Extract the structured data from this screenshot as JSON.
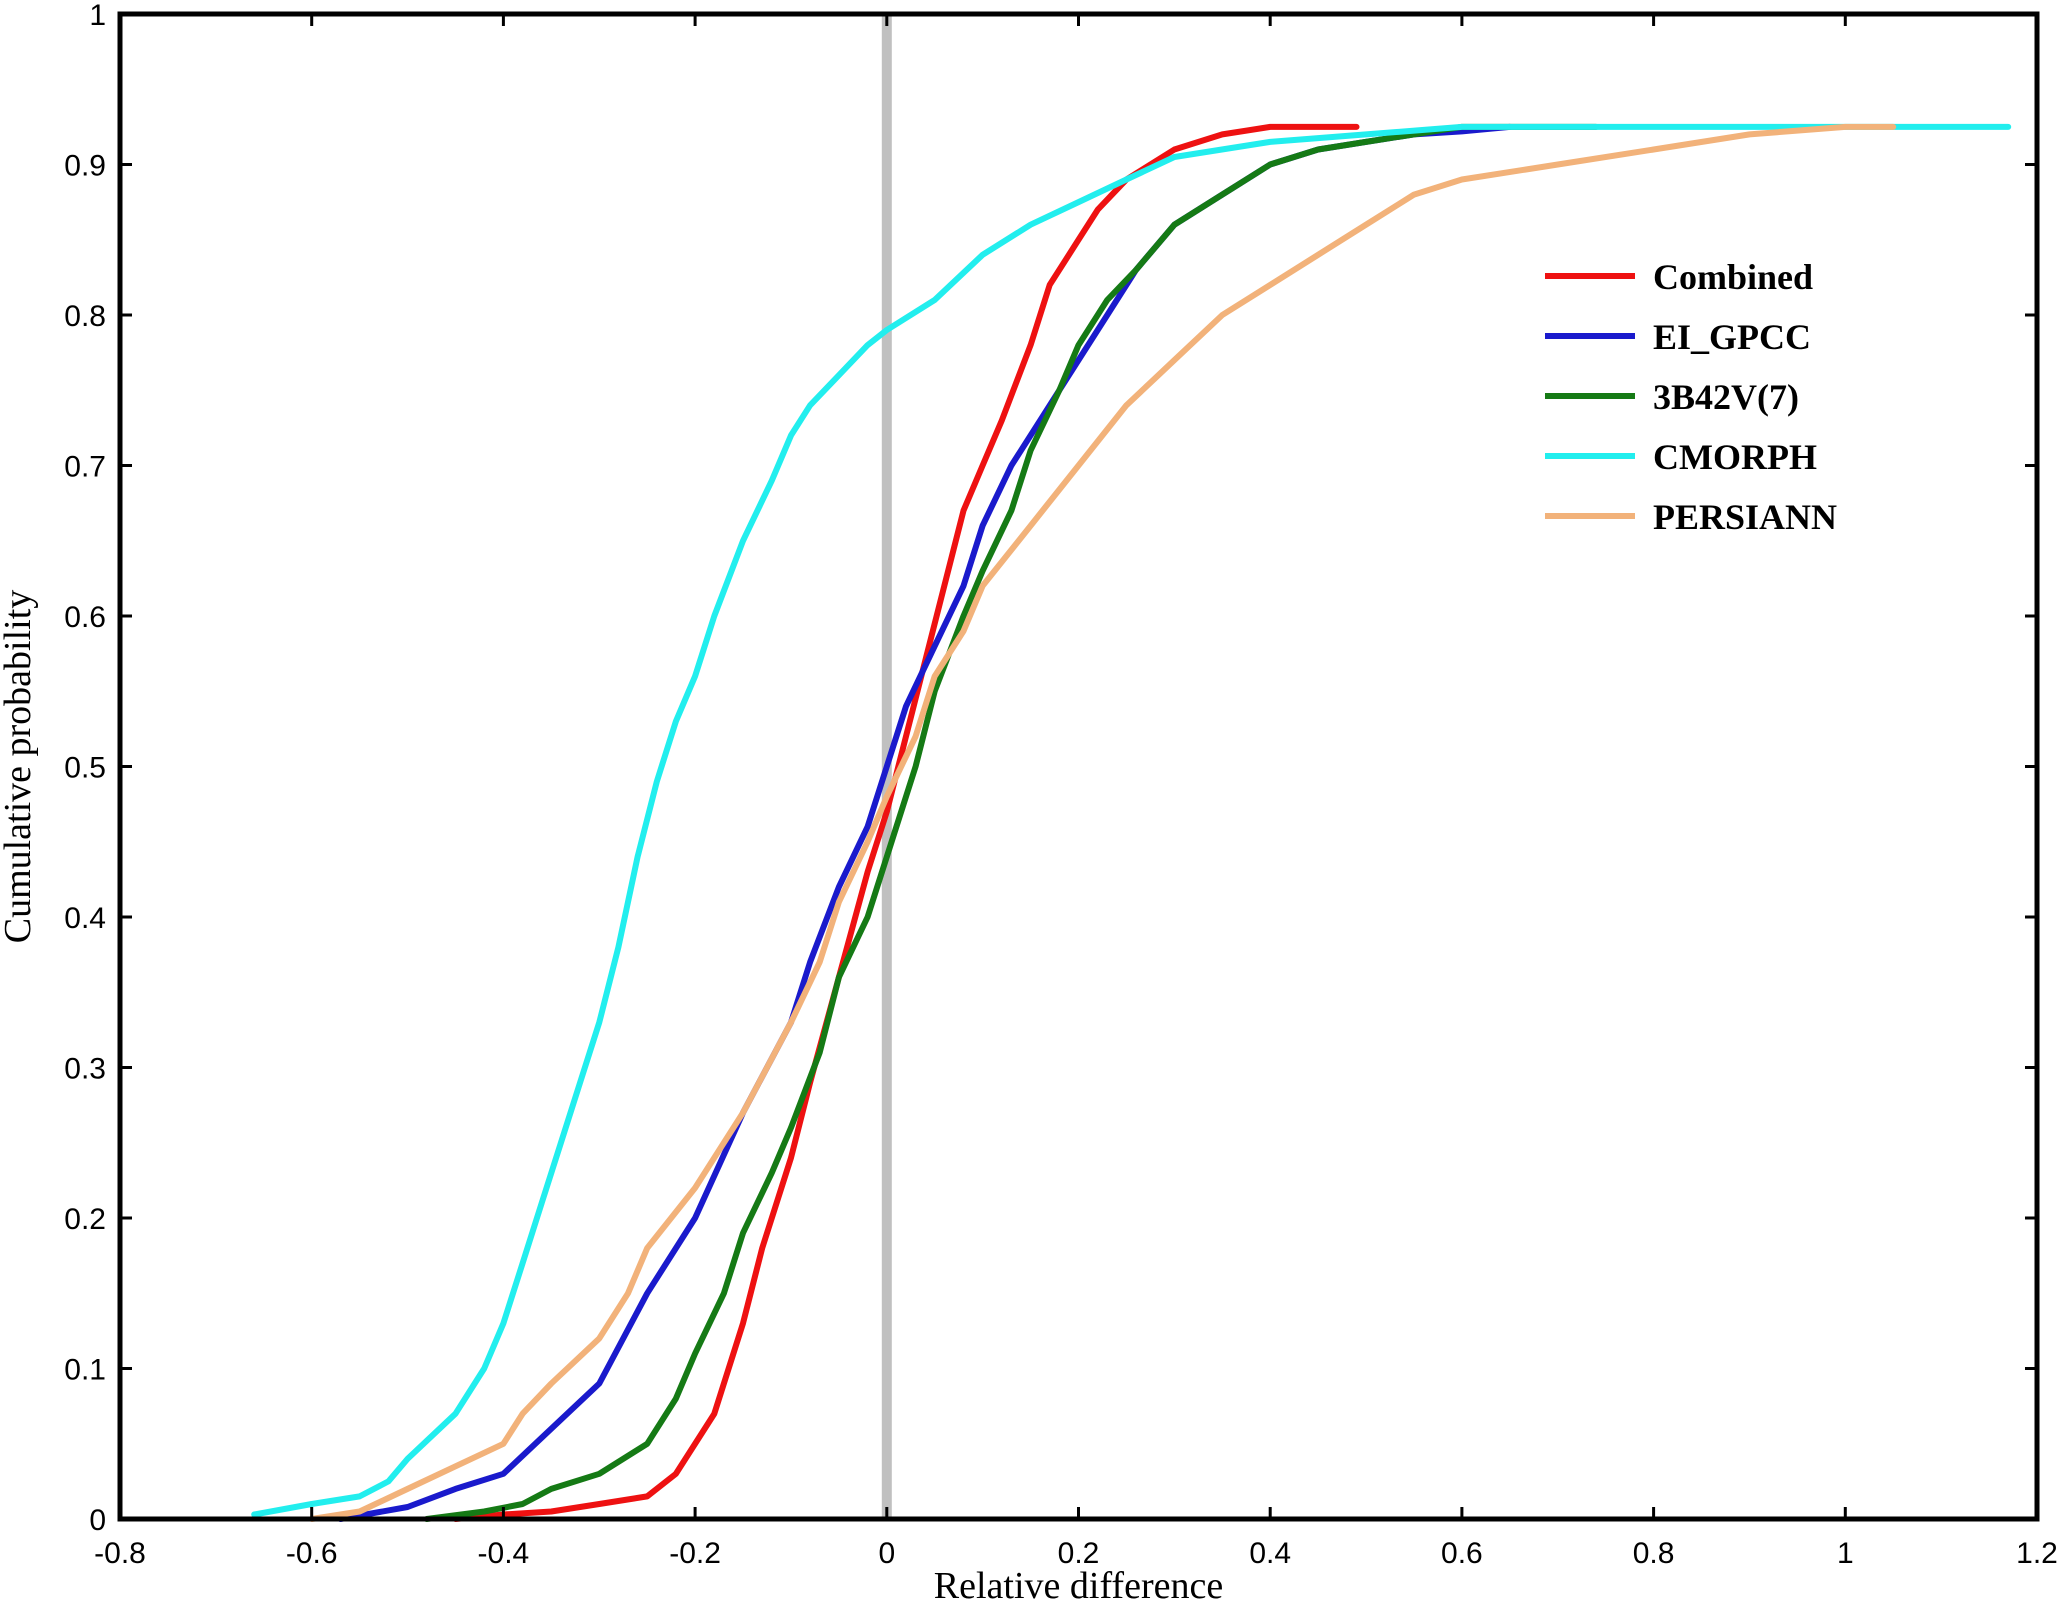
{
  "chart_data": {
    "type": "line",
    "title": "",
    "xlabel": "Relative difference",
    "ylabel": "Cumulative probability",
    "xlim": [
      -0.8,
      1.2
    ],
    "ylim": [
      0,
      1
    ],
    "x_ticks": [
      -0.8,
      -0.6,
      -0.4,
      -0.2,
      0,
      0.2,
      0.4,
      0.6,
      0.8,
      1,
      1.2
    ],
    "x_tick_labels": [
      "-0.8",
      "-0.6",
      "-0.4",
      "-0.2",
      "0",
      "0.2",
      "0.4",
      "0.6",
      "0.8",
      "1",
      "1.2"
    ],
    "y_ticks": [
      0,
      0.1,
      0.2,
      0.3,
      0.4,
      0.5,
      0.6,
      0.7,
      0.8,
      0.9,
      1
    ],
    "y_tick_labels": [
      "0",
      "0.1",
      "0.2",
      "0.3",
      "0.4",
      "0.5",
      "0.6",
      "0.7",
      "0.8",
      "0.9",
      "1"
    ],
    "grid": false,
    "legend_position": "upper-right",
    "reference_line": {
      "x": 0,
      "color": "#c0c0c0"
    },
    "series": [
      {
        "name": "Combined",
        "color": "#ee1111",
        "points": [
          [
            -0.45,
            0.0
          ],
          [
            -0.4,
            0.003
          ],
          [
            -0.35,
            0.005
          ],
          [
            -0.3,
            0.01
          ],
          [
            -0.25,
            0.015
          ],
          [
            -0.22,
            0.03
          ],
          [
            -0.2,
            0.05
          ],
          [
            -0.18,
            0.07
          ],
          [
            -0.15,
            0.13
          ],
          [
            -0.13,
            0.18
          ],
          [
            -0.1,
            0.24
          ],
          [
            -0.08,
            0.29
          ],
          [
            -0.05,
            0.36
          ],
          [
            -0.02,
            0.43
          ],
          [
            0.0,
            0.47
          ],
          [
            0.02,
            0.52
          ],
          [
            0.04,
            0.57
          ],
          [
            0.06,
            0.62
          ],
          [
            0.08,
            0.67
          ],
          [
            0.1,
            0.7
          ],
          [
            0.12,
            0.73
          ],
          [
            0.15,
            0.78
          ],
          [
            0.17,
            0.82
          ],
          [
            0.2,
            0.85
          ],
          [
            0.22,
            0.87
          ],
          [
            0.25,
            0.89
          ],
          [
            0.3,
            0.91
          ],
          [
            0.35,
            0.92
          ],
          [
            0.4,
            0.925
          ],
          [
            0.45,
            0.925
          ],
          [
            0.49,
            0.925
          ]
        ]
      },
      {
        "name": "EI_GPCC",
        "color": "#1a1acc",
        "points": [
          [
            -0.57,
            0.0
          ],
          [
            -0.5,
            0.008
          ],
          [
            -0.45,
            0.02
          ],
          [
            -0.4,
            0.03
          ],
          [
            -0.35,
            0.06
          ],
          [
            -0.3,
            0.09
          ],
          [
            -0.25,
            0.15
          ],
          [
            -0.2,
            0.2
          ],
          [
            -0.15,
            0.27
          ],
          [
            -0.1,
            0.33
          ],
          [
            -0.08,
            0.37
          ],
          [
            -0.05,
            0.42
          ],
          [
            -0.02,
            0.46
          ],
          [
            0.0,
            0.5
          ],
          [
            0.02,
            0.54
          ],
          [
            0.05,
            0.58
          ],
          [
            0.08,
            0.62
          ],
          [
            0.1,
            0.66
          ],
          [
            0.13,
            0.7
          ],
          [
            0.16,
            0.73
          ],
          [
            0.2,
            0.77
          ],
          [
            0.23,
            0.8
          ],
          [
            0.26,
            0.83
          ],
          [
            0.3,
            0.86
          ],
          [
            0.35,
            0.88
          ],
          [
            0.4,
            0.9
          ],
          [
            0.45,
            0.91
          ],
          [
            0.5,
            0.915
          ],
          [
            0.55,
            0.92
          ],
          [
            0.6,
            0.922
          ],
          [
            0.65,
            0.925
          ]
        ]
      },
      {
        "name": "3B42V(7)",
        "color": "#157a15",
        "points": [
          [
            -0.48,
            0.0
          ],
          [
            -0.42,
            0.005
          ],
          [
            -0.38,
            0.01
          ],
          [
            -0.35,
            0.02
          ],
          [
            -0.3,
            0.03
          ],
          [
            -0.25,
            0.05
          ],
          [
            -0.22,
            0.08
          ],
          [
            -0.2,
            0.11
          ],
          [
            -0.17,
            0.15
          ],
          [
            -0.15,
            0.19
          ],
          [
            -0.12,
            0.23
          ],
          [
            -0.1,
            0.26
          ],
          [
            -0.07,
            0.31
          ],
          [
            -0.05,
            0.36
          ],
          [
            -0.02,
            0.4
          ],
          [
            0.0,
            0.44
          ],
          [
            0.03,
            0.5
          ],
          [
            0.05,
            0.55
          ],
          [
            0.08,
            0.6
          ],
          [
            0.1,
            0.63
          ],
          [
            0.13,
            0.67
          ],
          [
            0.15,
            0.71
          ],
          [
            0.18,
            0.75
          ],
          [
            0.2,
            0.78
          ],
          [
            0.23,
            0.81
          ],
          [
            0.26,
            0.83
          ],
          [
            0.3,
            0.86
          ],
          [
            0.35,
            0.88
          ],
          [
            0.4,
            0.9
          ],
          [
            0.45,
            0.91
          ],
          [
            0.5,
            0.915
          ],
          [
            0.55,
            0.92
          ],
          [
            0.6,
            0.925
          ],
          [
            0.74,
            0.925
          ]
        ]
      },
      {
        "name": "CMORPH",
        "color": "#22eeee",
        "points": [
          [
            -0.66,
            0.003
          ],
          [
            -0.6,
            0.01
          ],
          [
            -0.55,
            0.015
          ],
          [
            -0.52,
            0.025
          ],
          [
            -0.5,
            0.04
          ],
          [
            -0.45,
            0.07
          ],
          [
            -0.42,
            0.1
          ],
          [
            -0.4,
            0.13
          ],
          [
            -0.38,
            0.17
          ],
          [
            -0.36,
            0.21
          ],
          [
            -0.34,
            0.25
          ],
          [
            -0.32,
            0.29
          ],
          [
            -0.3,
            0.33
          ],
          [
            -0.28,
            0.38
          ],
          [
            -0.26,
            0.44
          ],
          [
            -0.24,
            0.49
          ],
          [
            -0.22,
            0.53
          ],
          [
            -0.2,
            0.56
          ],
          [
            -0.18,
            0.6
          ],
          [
            -0.15,
            0.65
          ],
          [
            -0.12,
            0.69
          ],
          [
            -0.1,
            0.72
          ],
          [
            -0.08,
            0.74
          ],
          [
            -0.05,
            0.76
          ],
          [
            -0.02,
            0.78
          ],
          [
            0.0,
            0.79
          ],
          [
            0.05,
            0.81
          ],
          [
            0.1,
            0.84
          ],
          [
            0.15,
            0.86
          ],
          [
            0.2,
            0.875
          ],
          [
            0.25,
            0.89
          ],
          [
            0.3,
            0.905
          ],
          [
            0.4,
            0.915
          ],
          [
            0.5,
            0.92
          ],
          [
            0.6,
            0.925
          ],
          [
            0.8,
            0.925
          ],
          [
            1.0,
            0.925
          ],
          [
            1.17,
            0.925
          ]
        ]
      },
      {
        "name": "PERSIANN",
        "color": "#f2b27a",
        "points": [
          [
            -0.6,
            0.0
          ],
          [
            -0.55,
            0.005
          ],
          [
            -0.5,
            0.02
          ],
          [
            -0.45,
            0.035
          ],
          [
            -0.4,
            0.05
          ],
          [
            -0.38,
            0.07
          ],
          [
            -0.35,
            0.09
          ],
          [
            -0.3,
            0.12
          ],
          [
            -0.27,
            0.15
          ],
          [
            -0.25,
            0.18
          ],
          [
            -0.2,
            0.22
          ],
          [
            -0.15,
            0.27
          ],
          [
            -0.1,
            0.33
          ],
          [
            -0.07,
            0.37
          ],
          [
            -0.05,
            0.41
          ],
          [
            -0.02,
            0.45
          ],
          [
            0.0,
            0.48
          ],
          [
            0.03,
            0.52
          ],
          [
            0.05,
            0.56
          ],
          [
            0.08,
            0.59
          ],
          [
            0.1,
            0.62
          ],
          [
            0.15,
            0.66
          ],
          [
            0.2,
            0.7
          ],
          [
            0.25,
            0.74
          ],
          [
            0.3,
            0.77
          ],
          [
            0.35,
            0.8
          ],
          [
            0.4,
            0.82
          ],
          [
            0.45,
            0.84
          ],
          [
            0.5,
            0.86
          ],
          [
            0.55,
            0.88
          ],
          [
            0.6,
            0.89
          ],
          [
            0.7,
            0.9
          ],
          [
            0.8,
            0.91
          ],
          [
            0.9,
            0.92
          ],
          [
            1.0,
            0.925
          ],
          [
            1.05,
            0.925
          ]
        ]
      }
    ]
  }
}
